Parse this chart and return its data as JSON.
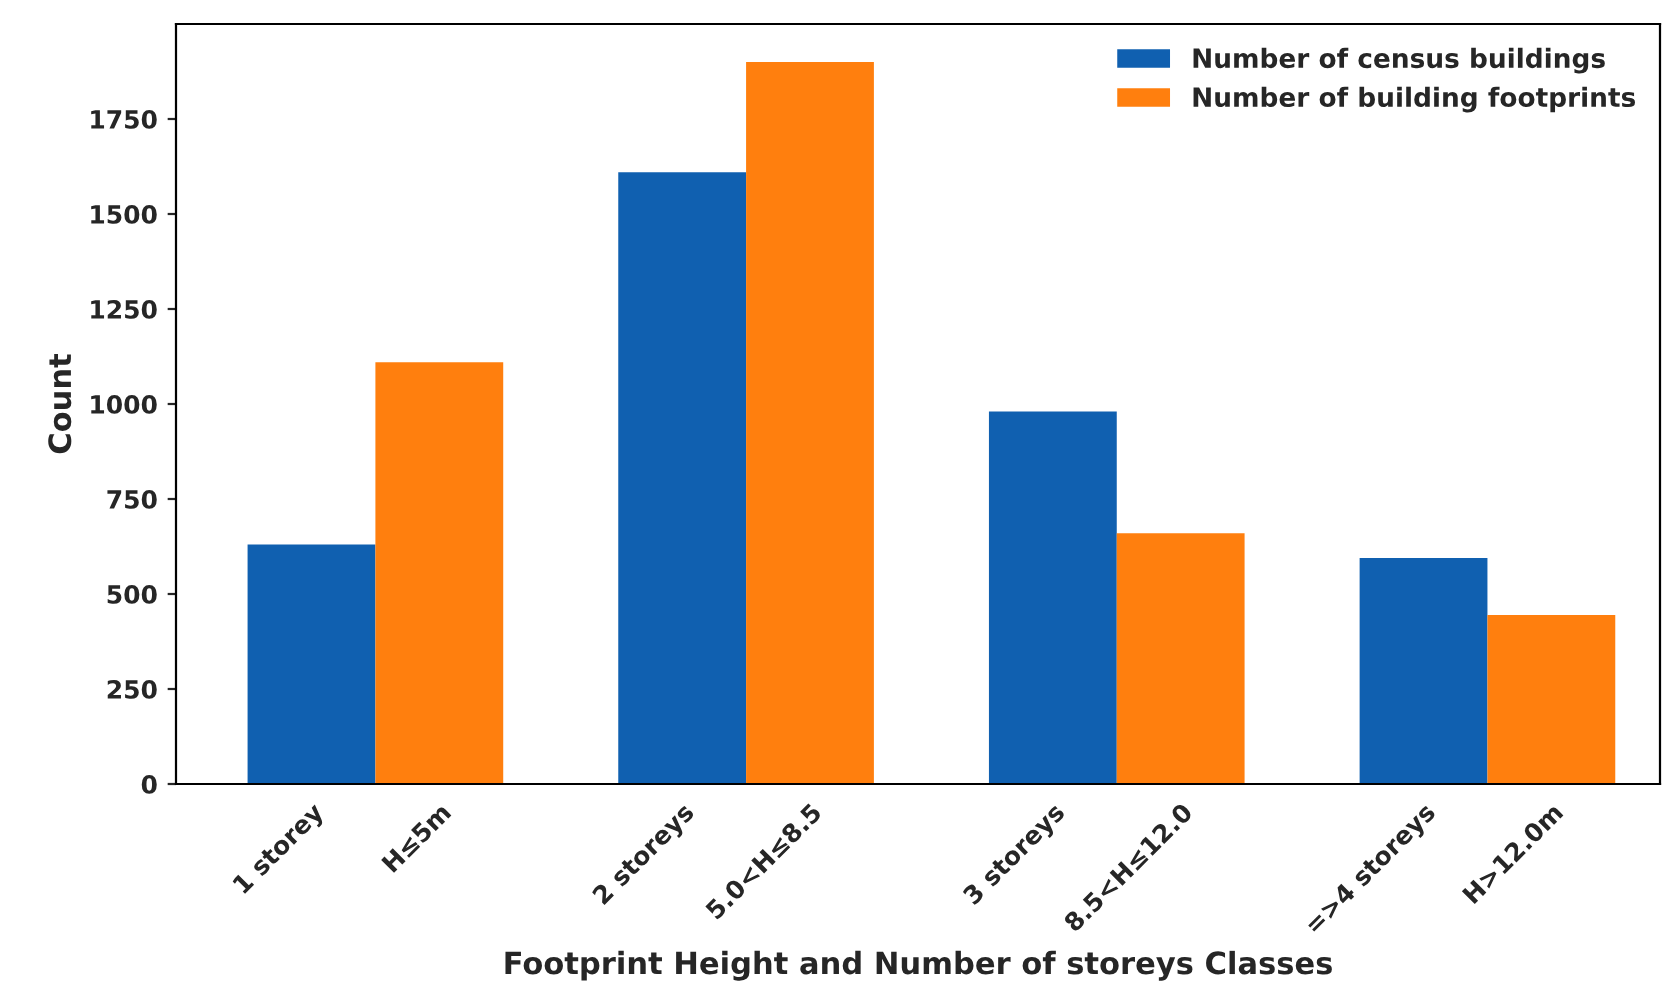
{
  "chart_data": {
    "type": "bar",
    "xlabel": "Footprint Height and Number of storeys Classes",
    "ylabel": "Count",
    "categories": [
      "1 storey",
      "H≤5m",
      "2 storeys",
      "5.0<H≤8.5",
      "3 storeys",
      "8.5<H≤12.0",
      "=>4 storeys",
      "H>12.0m"
    ],
    "series": [
      {
        "name": "Number of census buildings",
        "color": "#1060b0",
        "values": [
          630,
          null,
          1610,
          null,
          980,
          null,
          595,
          null
        ]
      },
      {
        "name": "Number of building footprints",
        "color": "#ff7f0e",
        "values": [
          null,
          1110,
          null,
          1900,
          null,
          660,
          null,
          445
        ]
      }
    ],
    "ylim": [
      0,
      2000
    ],
    "yticks": [
      0,
      250,
      500,
      750,
      1000,
      1250,
      1500,
      1750
    ],
    "grid": false,
    "legend": "top right"
  }
}
